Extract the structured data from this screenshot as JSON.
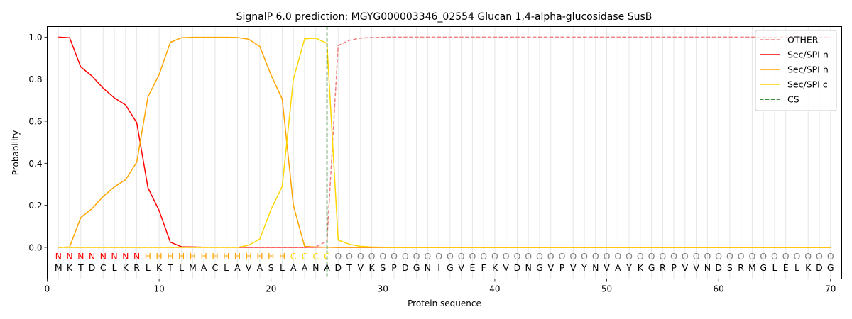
{
  "chart_data": {
    "type": "line",
    "title": "SignalP 6.0 prediction: MGYG000003346_02554 Glucan 1,4-alpha-glucosidase SusB",
    "xlabel": "Protein sequence",
    "ylabel": "Probability",
    "xlim": [
      0,
      71
    ],
    "ylim": [
      -0.15,
      1.05
    ],
    "xticks": [
      0,
      10,
      20,
      30,
      40,
      50,
      60,
      70
    ],
    "yticks": [
      0.0,
      0.2,
      0.4,
      0.6,
      0.8,
      1.0
    ],
    "xtick_labels": [
      "0",
      "10",
      "20",
      "30",
      "40",
      "50",
      "60",
      "70"
    ],
    "ytick_labels": [
      "0.0",
      "0.2",
      "0.4",
      "0.6",
      "0.8",
      "1.0"
    ],
    "grid": "vertical lines at each residue",
    "legend_position": "top-right",
    "x": [
      1,
      2,
      3,
      4,
      5,
      6,
      7,
      8,
      9,
      10,
      11,
      12,
      13,
      14,
      15,
      16,
      17,
      18,
      19,
      20,
      21,
      22,
      23,
      24,
      25,
      26,
      27,
      28,
      29,
      30,
      31,
      32,
      33,
      34,
      35,
      36,
      37,
      38,
      39,
      40,
      41,
      42,
      43,
      44,
      45,
      46,
      47,
      48,
      49,
      50,
      51,
      52,
      53,
      54,
      55,
      56,
      57,
      58,
      59,
      60,
      61,
      62,
      63,
      64,
      65,
      66,
      67,
      68,
      69,
      70
    ],
    "sequence": [
      "M",
      "K",
      "T",
      "D",
      "C",
      "L",
      "K",
      "R",
      "L",
      "K",
      "T",
      "L",
      "M",
      "A",
      "C",
      "L",
      "A",
      "V",
      "A",
      "S",
      "L",
      "A",
      "A",
      "N",
      "A",
      "D",
      "T",
      "V",
      "K",
      "S",
      "P",
      "D",
      "G",
      "N",
      "I",
      "G",
      "V",
      "E",
      "F",
      "K",
      "V",
      "D",
      "N",
      "G",
      "V",
      "P",
      "V",
      "Y",
      "N",
      "V",
      "A",
      "Y",
      "K",
      "G",
      "R",
      "P",
      "V",
      "V",
      "N",
      "D",
      "S",
      "R",
      "M",
      "G",
      "L",
      "E",
      "L",
      "K",
      "D",
      "G"
    ],
    "region_labels": [
      "N",
      "N",
      "N",
      "N",
      "N",
      "N",
      "N",
      "N",
      "H",
      "H",
      "H",
      "H",
      "H",
      "H",
      "H",
      "H",
      "H",
      "H",
      "H",
      "H",
      "H",
      "C",
      "C",
      "C",
      "C",
      "O",
      "O",
      "O",
      "O",
      "O",
      "O",
      "O",
      "O",
      "O",
      "O",
      "O",
      "O",
      "O",
      "O",
      "O",
      "O",
      "O",
      "O",
      "O",
      "O",
      "O",
      "O",
      "O",
      "O",
      "O",
      "O",
      "O",
      "O",
      "O",
      "O",
      "O",
      "O",
      "O",
      "O",
      "O",
      "O",
      "O",
      "O",
      "O",
      "O",
      "O",
      "O",
      "O",
      "O",
      "O"
    ],
    "region_colors": {
      "N": "#ff0000",
      "H": "#ffa500",
      "C": "#ffd700",
      "O": "#808080"
    },
    "series": [
      {
        "name": "OTHER",
        "color": "#f08080",
        "dash": "dashed",
        "values": [
          0,
          0,
          0,
          0,
          0,
          0,
          0,
          0,
          0,
          0,
          0,
          0,
          0,
          0,
          0,
          0,
          0,
          0,
          0,
          0,
          0,
          0,
          0,
          0.003,
          0.03,
          0.96,
          0.985,
          0.995,
          0.998,
          0.999,
          1,
          1,
          1,
          1,
          1,
          1,
          1,
          1,
          1,
          1,
          1,
          1,
          1,
          1,
          1,
          1,
          1,
          1,
          1,
          1,
          1,
          1,
          1,
          1,
          1,
          1,
          1,
          1,
          1,
          1,
          1,
          1,
          1,
          1,
          1,
          1,
          1,
          1,
          1,
          1
        ]
      },
      {
        "name": "Sec/SPI n",
        "color": "#ff0000",
        "dash": "solid",
        "values": [
          1.0,
          0.997,
          0.858,
          0.815,
          0.757,
          0.711,
          0.677,
          0.593,
          0.284,
          0.175,
          0.025,
          0.003,
          0.002,
          0.001,
          0.001,
          0.001,
          0.001,
          0.001,
          0.001,
          0.001,
          0.001,
          0.001,
          0.001,
          0.001,
          0.001,
          0,
          0,
          0,
          0,
          0,
          0,
          0,
          0,
          0,
          0,
          0,
          0,
          0,
          0,
          0,
          0,
          0,
          0,
          0,
          0,
          0,
          0,
          0,
          0,
          0,
          0,
          0,
          0,
          0,
          0,
          0,
          0,
          0,
          0,
          0,
          0,
          0,
          0,
          0,
          0,
          0,
          0,
          0,
          0,
          0
        ]
      },
      {
        "name": "Sec/SPI h",
        "color": "#ffa500",
        "dash": "solid",
        "values": [
          0,
          0.002,
          0.142,
          0.184,
          0.242,
          0.288,
          0.322,
          0.405,
          0.716,
          0.822,
          0.975,
          0.997,
          0.999,
          0.999,
          0.999,
          0.999,
          0.998,
          0.99,
          0.955,
          0.82,
          0.705,
          0.2,
          0.005,
          0.002,
          0.001,
          0,
          0,
          0,
          0,
          0,
          0,
          0,
          0,
          0,
          0,
          0,
          0,
          0,
          0,
          0,
          0,
          0,
          0,
          0,
          0,
          0,
          0,
          0,
          0,
          0,
          0,
          0,
          0,
          0,
          0,
          0,
          0,
          0,
          0,
          0,
          0,
          0,
          0,
          0,
          0,
          0,
          0,
          0,
          0,
          0
        ]
      },
      {
        "name": "Sec/SPI c",
        "color": "#ffd700",
        "dash": "solid",
        "values": [
          0,
          0,
          0,
          0,
          0,
          0,
          0,
          0,
          0,
          0,
          0,
          0,
          0,
          0,
          0,
          0,
          0,
          0.01,
          0.04,
          0.18,
          0.29,
          0.8,
          0.992,
          0.995,
          0.97,
          0.035,
          0.015,
          0.005,
          0.002,
          0.001,
          0,
          0,
          0,
          0,
          0,
          0,
          0,
          0,
          0,
          0,
          0,
          0,
          0,
          0,
          0,
          0,
          0,
          0,
          0,
          0,
          0,
          0,
          0,
          0,
          0,
          0,
          0,
          0,
          0,
          0,
          0,
          0,
          0,
          0,
          0,
          0,
          0,
          0,
          0,
          0
        ]
      }
    ],
    "cs_marker": {
      "name": "CS",
      "x": 25,
      "color": "#006400",
      "dash": "dashed"
    }
  }
}
